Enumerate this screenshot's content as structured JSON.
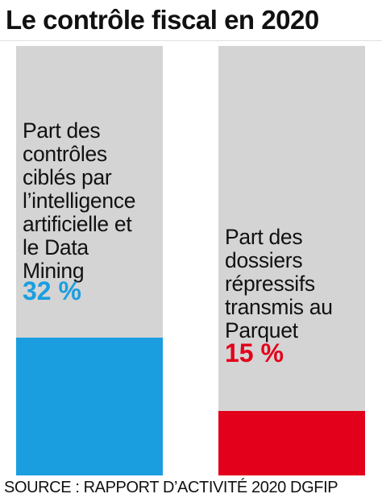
{
  "chart_data": {
    "type": "bar",
    "title": "Le contrôle fiscal en 2020",
    "ylim": [
      0,
      100
    ],
    "grid": false,
    "bars": [
      {
        "label_lines": [
          "Part des",
          "contrôles",
          "ciblés par",
          "l’intelligence",
          "artificielle et",
          "le Data",
          "Mining"
        ],
        "value": 32,
        "value_text": "32 %",
        "color": "#1a9ee0"
      },
      {
        "label_lines": [
          "Part des",
          "dossiers",
          "répressifs",
          "transmis au",
          "Parquet"
        ],
        "value": 15,
        "value_text": "15 %",
        "color": "#e3001b"
      }
    ],
    "track_color": "#d4d4d4",
    "source": "SOURCE : RAPPORT D’ACTIVITÉ 2020 DGFIP"
  }
}
